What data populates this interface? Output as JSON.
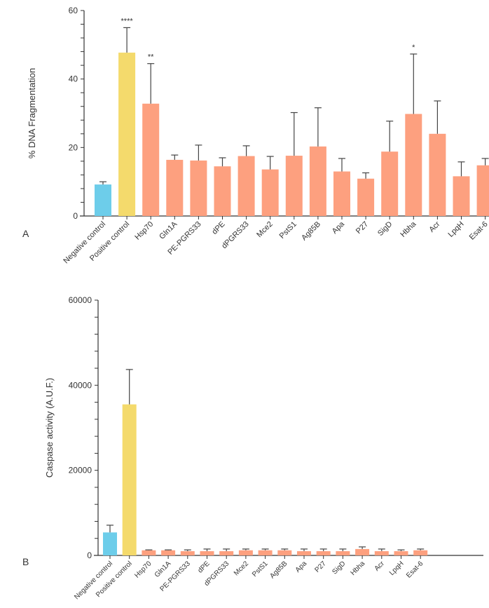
{
  "colors": {
    "negative": "#6dcdea",
    "positive": "#f4da6c",
    "antigen": "#fda07f",
    "axis": "#333333",
    "error": "#444444"
  },
  "chart_data": [
    {
      "type": "bar",
      "panel_label": "A",
      "ylabel": "% DNA Fragmentation",
      "ylim": [
        0,
        60
      ],
      "yticks": [
        0,
        20,
        40,
        60
      ],
      "minor_tick_step": 4,
      "categories": [
        "Negative control",
        "Positive control",
        "Hsp70",
        "Gln1A",
        "PE-PGRS33",
        "dPE",
        "dPGRS33",
        "Mce2",
        "PstS1",
        "Ag85B",
        "Apa",
        "P27",
        "SigD",
        "Hbha",
        "Acr",
        "LpqH",
        "Esat-6"
      ],
      "values": [
        9.2,
        47.7,
        32.8,
        16.4,
        16.2,
        14.5,
        17.5,
        13.6,
        17.6,
        20.3,
        13.0,
        10.9,
        18.8,
        29.8,
        24.0,
        11.6,
        14.8
      ],
      "error_upper": [
        10.0,
        55.0,
        44.5,
        17.8,
        20.7,
        17.0,
        20.5,
        17.4,
        30.2,
        31.6,
        16.8,
        12.6,
        27.7,
        47.3,
        33.6,
        15.8,
        16.8
      ],
      "significance": [
        "",
        "****",
        "**",
        "",
        "",
        "",
        "",
        "",
        "",
        "",
        "",
        "",
        "",
        "*",
        "",
        "",
        ""
      ],
      "grid": false
    },
    {
      "type": "bar",
      "panel_label": "B",
      "ylabel": "Caspase activity (A.U.F.)",
      "ylim": [
        0,
        60000
      ],
      "yticks": [
        0,
        20000,
        40000,
        60000
      ],
      "minor_tick_step": 4000,
      "categories": [
        "Negative control",
        "Positive control",
        "Hsp70",
        "Gln1A",
        "PE-PGRS33",
        "dPE",
        "dPGRS33",
        "Mce2",
        "PstS1",
        "Ag85B",
        "Apa",
        "P27",
        "SigD",
        "Hbha",
        "Acr",
        "LpqH",
        "Esat-6"
      ],
      "values": [
        5400,
        35500,
        1200,
        1200,
        1000,
        1000,
        1000,
        1200,
        1200,
        1200,
        1000,
        1000,
        1000,
        1500,
        1000,
        1000,
        1200
      ],
      "error_upper": [
        7100,
        43700,
        1300,
        1300,
        1300,
        1500,
        1500,
        1500,
        1500,
        1500,
        1500,
        1500,
        1500,
        2000,
        1500,
        1300,
        1500
      ],
      "grid": false
    }
  ]
}
